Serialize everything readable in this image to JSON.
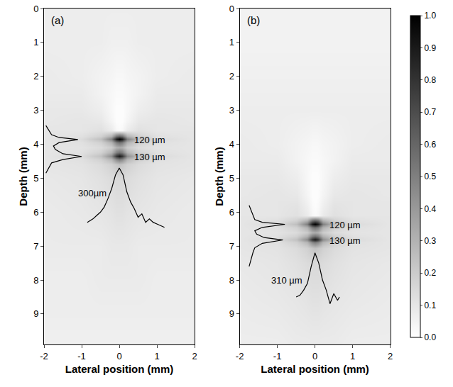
{
  "chart_data": [
    {
      "type": "heatmap",
      "title": "(a)",
      "xlabel": "Lateral position (mm)",
      "ylabel": "Depth (mm)",
      "xlim": [
        -2,
        2
      ],
      "xticks": [
        -2,
        -1,
        0,
        1,
        2
      ],
      "ylim": [
        0,
        9.9
      ],
      "yticks": [
        0,
        1,
        2,
        3,
        4,
        5,
        6,
        7,
        8,
        9
      ],
      "grid": false,
      "color_range": [
        0,
        1
      ],
      "x": [
        -2,
        -1,
        -0.5,
        -0.2,
        -0.08,
        0,
        0.08,
        0.2,
        0.5,
        1,
        2
      ],
      "y": [
        0,
        1,
        2,
        2.5,
        3,
        3.3,
        3.6,
        3.75,
        3.85,
        3.95,
        4.1,
        4.25,
        4.35,
        4.45,
        4.6,
        5,
        6,
        7,
        8,
        9,
        9.9
      ],
      "z": [
        [
          0.07,
          0.07,
          0.07,
          0.07,
          0.07,
          0.07,
          0.07,
          0.07,
          0.07,
          0.07,
          0.07
        ],
        [
          0.07,
          0.07,
          0.07,
          0.06,
          0.06,
          0.06,
          0.06,
          0.06,
          0.07,
          0.07,
          0.07
        ],
        [
          0.08,
          0.07,
          0.05,
          0.04,
          0.03,
          0.03,
          0.03,
          0.04,
          0.05,
          0.07,
          0.08
        ],
        [
          0.08,
          0.08,
          0.05,
          0.03,
          0.02,
          0.02,
          0.02,
          0.03,
          0.05,
          0.08,
          0.08
        ],
        [
          0.09,
          0.09,
          0.07,
          0.03,
          0.01,
          0.01,
          0.01,
          0.03,
          0.07,
          0.09,
          0.09
        ],
        [
          0.09,
          0.1,
          0.09,
          0.04,
          0.01,
          0.01,
          0.01,
          0.04,
          0.09,
          0.1,
          0.09
        ],
        [
          0.1,
          0.1,
          0.12,
          0.08,
          0.03,
          0.02,
          0.03,
          0.08,
          0.12,
          0.1,
          0.1
        ],
        [
          0.1,
          0.12,
          0.18,
          0.3,
          0.55,
          0.6,
          0.55,
          0.3,
          0.18,
          0.12,
          0.1
        ],
        [
          0.1,
          0.14,
          0.25,
          0.5,
          0.9,
          1.0,
          0.9,
          0.5,
          0.25,
          0.14,
          0.1
        ],
        [
          0.1,
          0.12,
          0.18,
          0.3,
          0.5,
          0.55,
          0.5,
          0.3,
          0.18,
          0.12,
          0.1
        ],
        [
          0.1,
          0.11,
          0.14,
          0.2,
          0.3,
          0.32,
          0.3,
          0.2,
          0.14,
          0.11,
          0.1
        ],
        [
          0.1,
          0.12,
          0.18,
          0.3,
          0.5,
          0.55,
          0.5,
          0.3,
          0.18,
          0.12,
          0.1
        ],
        [
          0.1,
          0.14,
          0.24,
          0.45,
          0.8,
          0.9,
          0.8,
          0.45,
          0.24,
          0.14,
          0.1
        ],
        [
          0.1,
          0.12,
          0.18,
          0.28,
          0.45,
          0.5,
          0.45,
          0.28,
          0.18,
          0.12,
          0.1
        ],
        [
          0.1,
          0.11,
          0.14,
          0.18,
          0.22,
          0.24,
          0.22,
          0.18,
          0.14,
          0.11,
          0.1
        ],
        [
          0.09,
          0.1,
          0.12,
          0.14,
          0.15,
          0.15,
          0.15,
          0.14,
          0.12,
          0.1,
          0.09
        ],
        [
          0.08,
          0.09,
          0.1,
          0.11,
          0.12,
          0.12,
          0.12,
          0.11,
          0.1,
          0.09,
          0.08
        ],
        [
          0.08,
          0.08,
          0.08,
          0.09,
          0.09,
          0.09,
          0.09,
          0.09,
          0.08,
          0.08,
          0.08
        ],
        [
          0.07,
          0.07,
          0.08,
          0.08,
          0.08,
          0.08,
          0.08,
          0.08,
          0.08,
          0.07,
          0.07
        ],
        [
          0.07,
          0.07,
          0.07,
          0.07,
          0.07,
          0.07,
          0.07,
          0.07,
          0.07,
          0.07,
          0.07
        ],
        [
          0.06,
          0.06,
          0.06,
          0.06,
          0.06,
          0.06,
          0.06,
          0.06,
          0.06,
          0.06,
          0.06
        ]
      ],
      "series": [
        {
          "type": "line",
          "color": "#000000",
          "x": [
            -1.95,
            -1.9,
            -1.85,
            -1.8,
            -1.6,
            -1.1,
            -1.6,
            -1.75,
            -1.7,
            -1.5,
            -1.0,
            -1.5,
            -1.8,
            -1.85,
            -1.9,
            -1.95
          ],
          "values": [
            3.45,
            3.55,
            3.65,
            3.72,
            3.8,
            3.86,
            3.95,
            4.05,
            4.15,
            4.28,
            4.36,
            4.45,
            4.55,
            4.65,
            4.75,
            4.85
          ]
        },
        {
          "type": "line",
          "color": "#000000",
          "x": [
            -0.85,
            -0.7,
            -0.6,
            -0.5,
            -0.4,
            -0.3,
            -0.2,
            -0.1,
            0,
            0.1,
            0.2,
            0.3,
            0.4,
            0.5,
            0.6,
            0.7,
            0.8,
            0.9,
            1.0,
            1.1,
            1.2
          ],
          "values": [
            6.3,
            6.2,
            6.1,
            6.0,
            5.85,
            5.6,
            5.3,
            4.9,
            4.7,
            4.9,
            5.4,
            5.7,
            5.9,
            6.15,
            6.05,
            6.3,
            6.2,
            6.3,
            6.35,
            6.4,
            6.45
          ]
        }
      ],
      "annotations": [
        {
          "text": "120 µm",
          "x": 0.35,
          "y": 3.88
        },
        {
          "text": "130 µm",
          "x": 0.35,
          "y": 4.38
        },
        {
          "text": "300µm",
          "x": -0.3,
          "y": 5.45
        }
      ]
    },
    {
      "type": "heatmap",
      "title": "(b)",
      "xlabel": "Lateral position (mm)",
      "ylabel": "Depth (mm)",
      "xlim": [
        -2,
        2
      ],
      "xticks": [
        -2,
        -1,
        0,
        1,
        2
      ],
      "ylim": [
        0,
        9.9
      ],
      "yticks": [
        0,
        1,
        2,
        3,
        4,
        5,
        6,
        7,
        8,
        9
      ],
      "grid": false,
      "color_range": [
        0,
        1
      ],
      "color_ticks": [
        {
          "value": 0,
          "label": "0.0"
        },
        0.1,
        0.2,
        0.3,
        0.4,
        0.5,
        0.6,
        0.7,
        0.8,
        0.9,
        {
          "value": 1,
          "label": "1.0"
        }
      ],
      "x": [
        -2,
        -1,
        -0.5,
        -0.2,
        -0.08,
        0,
        0.08,
        0.2,
        0.5,
        1,
        2
      ],
      "y": [
        0,
        1,
        2,
        3,
        4,
        4.5,
        5,
        5.5,
        5.8,
        6.1,
        6.25,
        6.35,
        6.45,
        6.6,
        6.7,
        6.8,
        6.9,
        7.05,
        7.5,
        8.5,
        9.9
      ],
      "z": [
        [
          0.05,
          0.05,
          0.05,
          0.05,
          0.05,
          0.05,
          0.05,
          0.05,
          0.05,
          0.05,
          0.05
        ],
        [
          0.05,
          0.05,
          0.05,
          0.05,
          0.05,
          0.05,
          0.05,
          0.05,
          0.05,
          0.05,
          0.05
        ],
        [
          0.06,
          0.06,
          0.06,
          0.06,
          0.06,
          0.06,
          0.06,
          0.06,
          0.06,
          0.06,
          0.06
        ],
        [
          0.07,
          0.07,
          0.07,
          0.07,
          0.07,
          0.07,
          0.07,
          0.07,
          0.07,
          0.07,
          0.07
        ],
        [
          0.08,
          0.07,
          0.05,
          0.04,
          0.03,
          0.03,
          0.03,
          0.04,
          0.05,
          0.07,
          0.08
        ],
        [
          0.08,
          0.08,
          0.05,
          0.03,
          0.02,
          0.02,
          0.02,
          0.03,
          0.05,
          0.08,
          0.08
        ],
        [
          0.09,
          0.09,
          0.07,
          0.03,
          0.01,
          0.01,
          0.01,
          0.03,
          0.07,
          0.09,
          0.09
        ],
        [
          0.09,
          0.1,
          0.09,
          0.04,
          0.01,
          0.01,
          0.01,
          0.04,
          0.09,
          0.1,
          0.09
        ],
        [
          0.1,
          0.1,
          0.11,
          0.06,
          0.02,
          0.01,
          0.02,
          0.06,
          0.11,
          0.1,
          0.1
        ],
        [
          0.1,
          0.1,
          0.12,
          0.08,
          0.03,
          0.02,
          0.03,
          0.08,
          0.12,
          0.1,
          0.1
        ],
        [
          0.1,
          0.12,
          0.18,
          0.3,
          0.55,
          0.6,
          0.55,
          0.3,
          0.18,
          0.12,
          0.1
        ],
        [
          0.1,
          0.14,
          0.25,
          0.5,
          0.9,
          1.0,
          0.9,
          0.5,
          0.25,
          0.14,
          0.1
        ],
        [
          0.1,
          0.12,
          0.18,
          0.3,
          0.5,
          0.55,
          0.5,
          0.3,
          0.18,
          0.12,
          0.1
        ],
        [
          0.1,
          0.11,
          0.14,
          0.2,
          0.3,
          0.32,
          0.3,
          0.2,
          0.14,
          0.11,
          0.1
        ],
        [
          0.1,
          0.12,
          0.18,
          0.3,
          0.5,
          0.55,
          0.5,
          0.3,
          0.18,
          0.12,
          0.1
        ],
        [
          0.1,
          0.14,
          0.24,
          0.45,
          0.8,
          0.9,
          0.8,
          0.45,
          0.24,
          0.14,
          0.1
        ],
        [
          0.1,
          0.12,
          0.18,
          0.28,
          0.45,
          0.5,
          0.45,
          0.28,
          0.18,
          0.12,
          0.1
        ],
        [
          0.1,
          0.11,
          0.14,
          0.18,
          0.22,
          0.24,
          0.22,
          0.18,
          0.14,
          0.11,
          0.1
        ],
        [
          0.09,
          0.1,
          0.12,
          0.14,
          0.15,
          0.15,
          0.15,
          0.14,
          0.12,
          0.1,
          0.09
        ],
        [
          0.08,
          0.09,
          0.1,
          0.11,
          0.12,
          0.12,
          0.12,
          0.11,
          0.1,
          0.09,
          0.08
        ],
        [
          0.07,
          0.07,
          0.08,
          0.08,
          0.08,
          0.08,
          0.08,
          0.08,
          0.08,
          0.07,
          0.07
        ]
      ],
      "series": [
        {
          "type": "line",
          "color": "#000000",
          "x": [
            -1.75,
            -1.7,
            -1.65,
            -1.6,
            -1.4,
            -0.8,
            -1.4,
            -1.6,
            -1.55,
            -1.35,
            -0.85,
            -1.4,
            -1.6,
            -1.65,
            -1.7,
            -1.75
          ],
          "values": [
            5.8,
            5.95,
            6.1,
            6.22,
            6.3,
            6.36,
            6.45,
            6.55,
            6.65,
            6.75,
            6.82,
            6.92,
            7.05,
            7.2,
            7.4,
            7.6
          ]
        },
        {
          "type": "line",
          "color": "#000000",
          "x": [
            -0.5,
            -0.4,
            -0.3,
            -0.2,
            -0.1,
            0,
            0.1,
            0.2,
            0.3,
            0.4,
            0.5,
            0.6,
            0.65
          ],
          "values": [
            8.5,
            8.45,
            8.3,
            8.1,
            7.6,
            7.2,
            7.5,
            8.0,
            8.3,
            8.7,
            8.4,
            8.6,
            8.5
          ]
        }
      ],
      "annotations": [
        {
          "text": "120 µm",
          "x": 0.35,
          "y": 6.38
        },
        {
          "text": "130 µm",
          "x": 0.35,
          "y": 6.85
        },
        {
          "text": "310 µm",
          "x": -0.3,
          "y": 8.0
        }
      ]
    }
  ]
}
